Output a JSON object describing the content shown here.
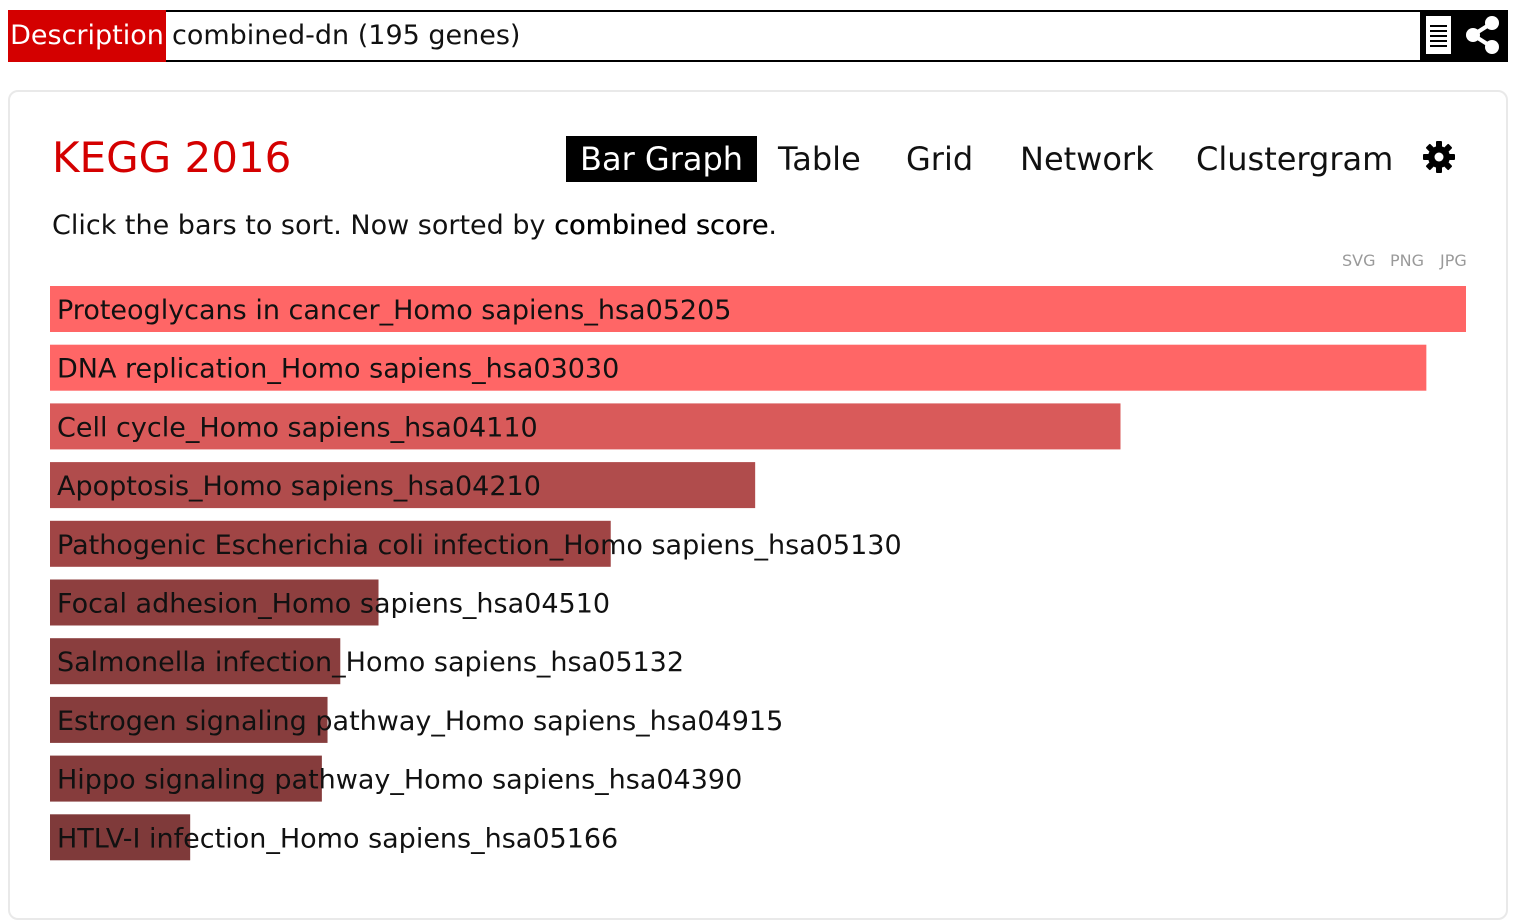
{
  "description": {
    "label": "Description",
    "text": "combined-dn (195 genes)"
  },
  "toolbar": {
    "icons": [
      "document-icon",
      "share-icon"
    ]
  },
  "panel": {
    "library_title": "KEGG 2016",
    "tabs": [
      {
        "label": "Bar Graph",
        "active": true
      },
      {
        "label": "Table",
        "active": false
      },
      {
        "label": "Grid",
        "active": false
      },
      {
        "label": "Network",
        "active": false
      },
      {
        "label": "Clustergram",
        "active": false
      }
    ],
    "settings_icon": "gear-icon",
    "sort_note_prefix": "Click the bars to sort. Now sorted by",
    "sort_note_key": "combined score",
    "sort_note_suffix": ".",
    "export_formats": [
      "SVG",
      "PNG",
      "JPG"
    ]
  },
  "chart_data": {
    "type": "bar",
    "orientation": "horizontal",
    "sorted_by": "combined score",
    "categories": [
      "Proteoglycans in cancer_Homo sapiens_hsa05205",
      "DNA replication_Homo sapiens_hsa03030",
      "Cell cycle_Homo sapiens_hsa04110",
      "Apoptosis_Homo sapiens_hsa04210",
      "Pathogenic Escherichia coli infection_Homo sapiens_hsa05130",
      "Focal adhesion_Homo sapiens_hsa04510",
      "Salmonella infection_Homo sapiens_hsa05132",
      "Estrogen signaling pathway_Homo sapiens_hsa04915",
      "Hippo signaling pathway_Homo sapiens_hsa04390",
      "HTLV-I infection_Homo sapiens_hsa05166"
    ],
    "relative_values": [
      1.0,
      0.972,
      0.756,
      0.498,
      0.396,
      0.232,
      0.205,
      0.196,
      0.192,
      0.099
    ],
    "colors": [
      "#ff6666",
      "#ff6666",
      "#d95a5a",
      "#b04c4c",
      "#a04545",
      "#8e3f3f",
      "#8a3e3e",
      "#873d3d",
      "#863c3c",
      "#7f3a3a"
    ]
  }
}
